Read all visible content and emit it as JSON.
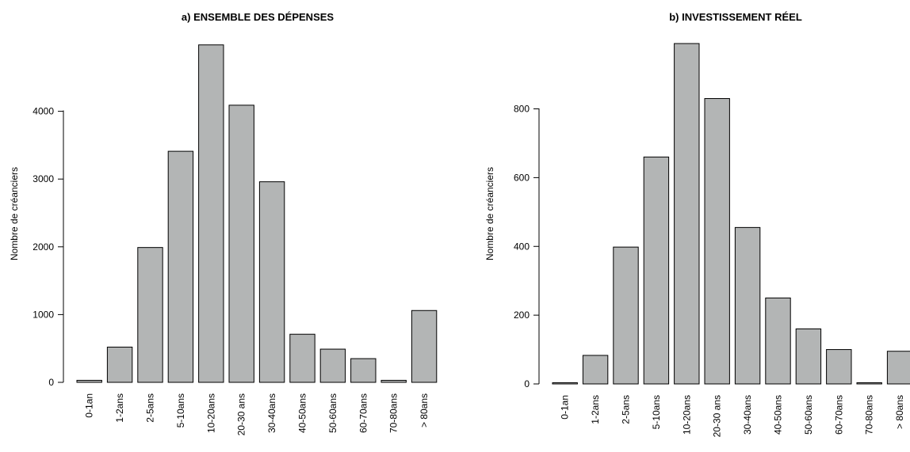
{
  "chart_data": [
    {
      "type": "bar",
      "title": "a) ENSEMBLE DES DÉPENSES",
      "xlabel": "",
      "ylabel": "Nombre de créanciers",
      "categories": [
        "0-1an",
        "1-2ans",
        "2-5ans",
        "5-10ans",
        "10-20ans",
        "20-30 ans",
        "30-40ans",
        "40-50ans",
        "50-60ans",
        "60-70ans",
        "70-80ans",
        "> 80ans"
      ],
      "values": [
        30,
        520,
        1990,
        3410,
        4980,
        4090,
        2960,
        710,
        490,
        350,
        30,
        1060
      ],
      "yticks": [
        0,
        1000,
        2000,
        3000,
        4000
      ],
      "ylim": [
        0,
        5000
      ],
      "grid": false
    },
    {
      "type": "bar",
      "title": "b) INVESTISSEMENT RÉEL",
      "xlabel": "",
      "ylabel": "Nombre de créanciers",
      "categories": [
        "0-1an",
        "1-2ans",
        "2-5ans",
        "5-10ans",
        "10-20ans",
        "20-30 ans",
        "30-40ans",
        "40-50ans",
        "50-60ans",
        "60-70ans",
        "70-80ans",
        "> 80ans"
      ],
      "values": [
        3,
        83,
        398,
        660,
        990,
        830,
        455,
        250,
        160,
        100,
        3,
        95
      ],
      "yticks": [
        0,
        200,
        400,
        600,
        800
      ],
      "ylim": [
        0,
        990
      ],
      "grid": false
    }
  ],
  "colors": {
    "bar_fill": "#b3b5b5",
    "bar_stroke": "#000000"
  }
}
